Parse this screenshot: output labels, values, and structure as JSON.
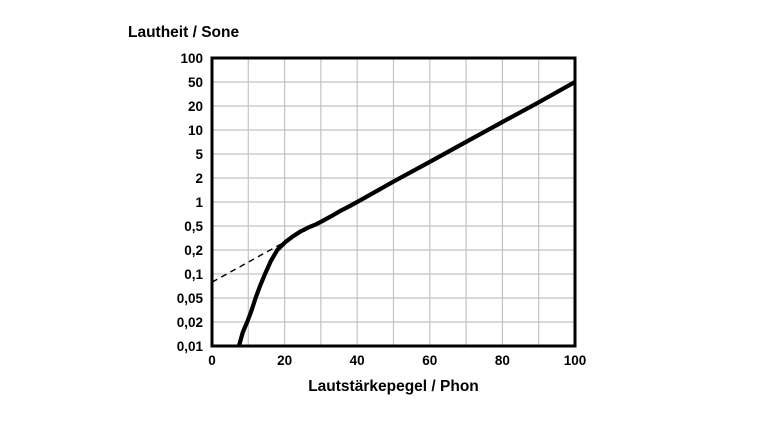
{
  "chart_data": {
    "type": "line",
    "title": "",
    "y_axis": {
      "label": "Lautheit / Sone",
      "scale": "quasi-log equal-spaced 1-2-5 ladder",
      "tick_labels": [
        "100",
        "50",
        "20",
        "10",
        "5",
        "2",
        "1",
        "0,5",
        "0,2",
        "0,1",
        "0,05",
        "0,02",
        "0,01"
      ],
      "tick_values": [
        100,
        50,
        20,
        10,
        5,
        2,
        1,
        0.5,
        0.2,
        0.1,
        0.05,
        0.02,
        0.01
      ],
      "range": [
        0.01,
        100
      ],
      "grid": true
    },
    "x_axis": {
      "label": "Lautstärkepegel / Phon",
      "scale": "linear",
      "tick_labels": [
        "0",
        "20",
        "40",
        "60",
        "80",
        "100"
      ],
      "tick_values": [
        0,
        20,
        40,
        60,
        80,
        100
      ],
      "gridline_step": 10,
      "range": [
        0,
        100
      ],
      "grid": true
    },
    "series": [
      {
        "name": "loudness-curve",
        "style": "solid",
        "color": "#000000",
        "stroke_width": 4.2,
        "points": [
          [
            7.4,
            0.01
          ],
          [
            8.5,
            0.015
          ],
          [
            9.7,
            0.02
          ],
          [
            10.8,
            0.03
          ],
          [
            12,
            0.05
          ],
          [
            13.2,
            0.07
          ],
          [
            14.6,
            0.1
          ],
          [
            16.2,
            0.145
          ],
          [
            18,
            0.2
          ],
          [
            20.2,
            0.27
          ],
          [
            22.4,
            0.34
          ],
          [
            24.5,
            0.41
          ],
          [
            26.5,
            0.47
          ],
          [
            28.5,
            0.52
          ],
          [
            30.5,
            0.58
          ],
          [
            33,
            0.67
          ],
          [
            35.5,
            0.78
          ],
          [
            38,
            0.89
          ],
          [
            40,
            1
          ],
          [
            50,
            1.8
          ],
          [
            60,
            3.7
          ],
          [
            70,
            7.1
          ],
          [
            80,
            12.6
          ],
          [
            90,
            23
          ],
          [
            100,
            50
          ]
        ]
      },
      {
        "name": "low-level-extrapolation",
        "style": "dashed",
        "color": "#000000",
        "stroke_width": 1.4,
        "points": [
          [
            0,
            0.079
          ],
          [
            28,
            0.5
          ]
        ]
      }
    ],
    "colors": {
      "curve": "#000000",
      "grid": "#c3c3c3",
      "axis": "#000000",
      "background": "#ffffff"
    },
    "legend": "none"
  }
}
